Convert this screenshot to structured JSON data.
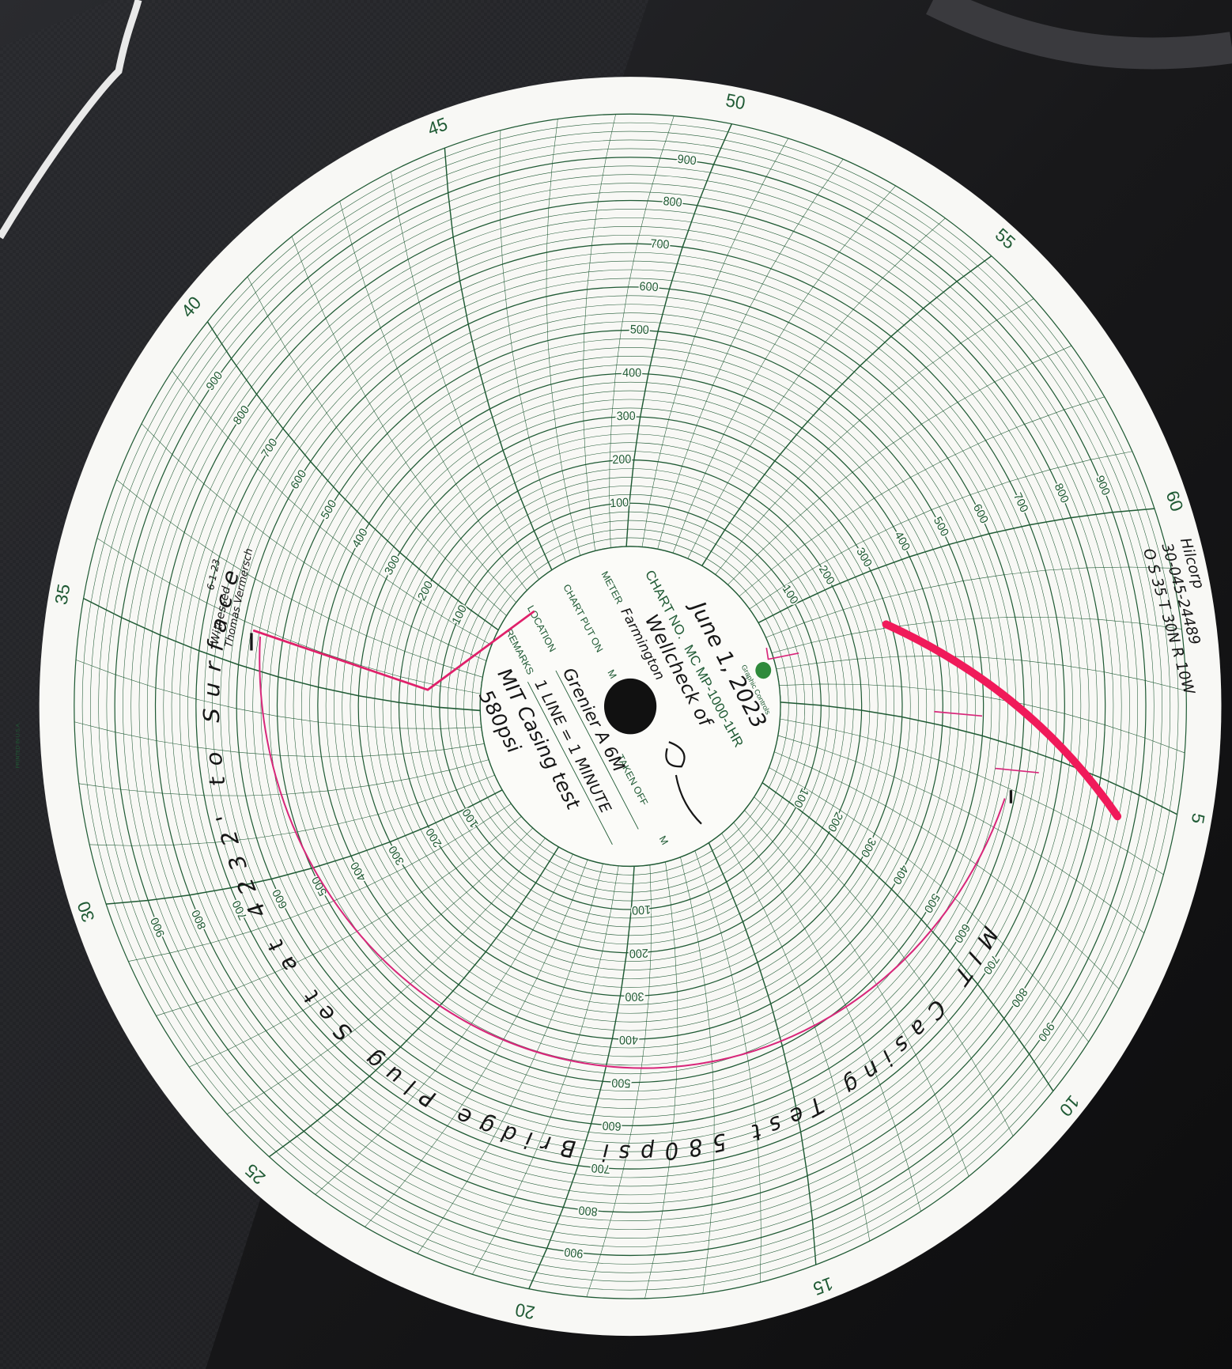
{
  "chart_paper": {
    "minute_labels": [
      "5",
      "10",
      "15",
      "20",
      "25",
      "30",
      "35",
      "40",
      "45",
      "50",
      "55",
      "60"
    ],
    "pressure_labels": [
      "100",
      "200",
      "300",
      "400",
      "500",
      "600",
      "700",
      "800",
      "900"
    ],
    "printed_note": "PRINTED IN U.S.A.",
    "brand": "Graphic Controls",
    "chart_no_label": "CHART NO.",
    "chart_no": "MC MP-1000-1HR",
    "meter_label": "METER",
    "put_on_label": "CHART PUT ON",
    "taken_off_label": "TAKEN OFF",
    "m_label": "M",
    "location_label": "LOCATION",
    "remarks_label": "REMARKS"
  },
  "handwriting": {
    "date": "June 1, 2023",
    "meter": [
      "Wellcheck of",
      "Farmington"
    ],
    "location": "Grenier A 6M",
    "remarks": [
      "1 LINE = 1 MINUTE",
      "MIT Casing test",
      "580psi"
    ],
    "well": [
      "Hilcorp",
      "30-045-24489",
      "O S 35 T 30N R 10W"
    ],
    "witness": [
      "6-1-23",
      "Witnessed",
      "Thomas Vermersch"
    ],
    "arc_note": "MIT Casing Test 580psi Bridge Plug Set at 4232' to Surface"
  }
}
